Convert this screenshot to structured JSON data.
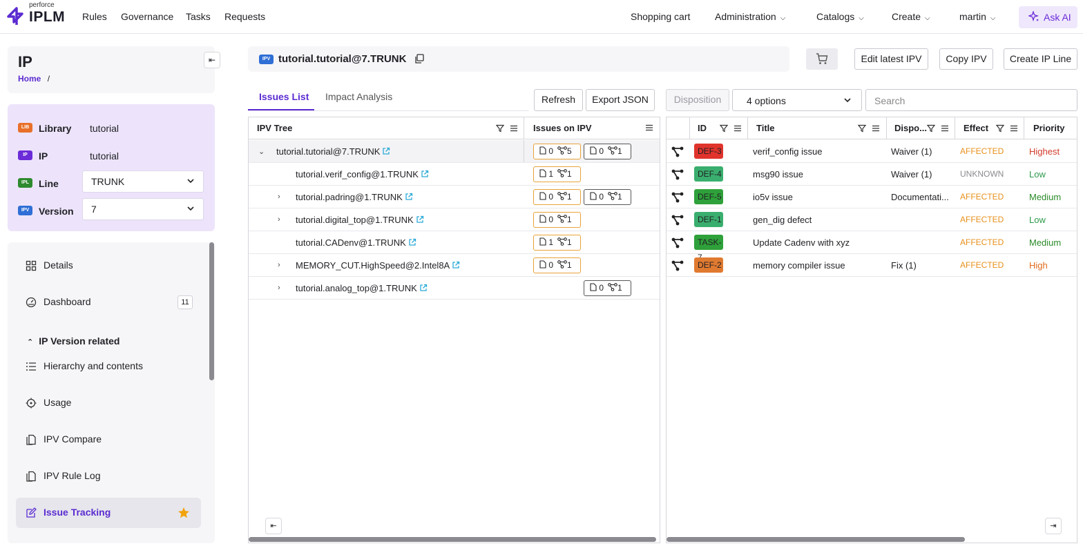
{
  "header": {
    "brand_small": "perforce",
    "brand": "IPLM",
    "nav_left": [
      "Rules",
      "Governance",
      "Tasks",
      "Requests"
    ],
    "shopping_cart": "Shopping cart",
    "administration": "Administration",
    "catalogs": "Catalogs",
    "create": "Create",
    "user": "martin",
    "ask_ai": "Ask AI"
  },
  "sidebar": {
    "title": "IP",
    "breadcrumb_home": "Home",
    "breadcrumb_sep": "/",
    "library_badge": "LIB",
    "library_label": "Library",
    "library_value": "tutorial",
    "ip_badge": "IP",
    "ip_label": "IP",
    "ip_value": "tutorial",
    "line_badge": "IPL",
    "line_label": "Line",
    "line_value": "TRUNK",
    "version_badge": "IPV",
    "version_label": "Version",
    "version_value": "7",
    "nav": {
      "details": "Details",
      "dashboard": "Dashboard",
      "dashboard_count": "11",
      "group": "IP Version related",
      "hierarchy": "Hierarchy and contents",
      "usage": "Usage",
      "ipv_compare": "IPV Compare",
      "rule_log": "IPV Rule Log",
      "issue_tracking": "Issue Tracking"
    }
  },
  "main": {
    "ipv_badge": "IPV",
    "ipv_title": "tutorial.tutorial@7.TRUNK",
    "edit_latest": "Edit latest IPV",
    "copy_ipv": "Copy IPV",
    "create_line": "Create IP Line",
    "tab_issues": "Issues List",
    "tab_impact": "Impact Analysis",
    "refresh": "Refresh",
    "export": "Export JSON",
    "disposition": "Disposition",
    "options": "4 options",
    "search_placeholder": "Search"
  },
  "tree": {
    "col_tree": "IPV Tree",
    "col_issues": "Issues on IPV",
    "rows": [
      {
        "name": "tutorial.tutorial@7.TRUNK",
        "a_doc": "0",
        "a_rel": "5",
        "b_doc": "0",
        "b_rel": "1"
      },
      {
        "name": "tutorial.verif_config@1.TRUNK",
        "a_doc": "1",
        "a_rel": "1"
      },
      {
        "name": "tutorial.padring@1.TRUNK",
        "a_doc": "0",
        "a_rel": "1",
        "b_doc": "0",
        "b_rel": "1"
      },
      {
        "name": "tutorial.digital_top@1.TRUNK",
        "a_doc": "0",
        "a_rel": "1"
      },
      {
        "name": "tutorial.CADenv@1.TRUNK",
        "a_doc": "1",
        "a_rel": "1"
      },
      {
        "name": "MEMORY_CUT.HighSpeed@2.Intel8A",
        "a_doc": "0",
        "a_rel": "1"
      },
      {
        "name": "tutorial.analog_top@1.TRUNK",
        "b_doc": "0",
        "b_rel": "1"
      }
    ]
  },
  "issues": {
    "col_id": "ID",
    "col_title": "Title",
    "col_dispo": "Dispo...",
    "col_effect": "Effect",
    "col_priority": "Priority",
    "rows": [
      {
        "id": "DEF-3",
        "title": "verif_config issue",
        "dispo": "Waiver (1)",
        "effect": "AFFECTED",
        "priority": "Highest",
        "id_color": "#e0342c",
        "prio_color": "#d23a2a",
        "effect_color": "#e8901c"
      },
      {
        "id": "DEF-4",
        "title": "msg90 issue",
        "dispo": "Waiver (1)",
        "effect": "UNKNOWN",
        "priority": "Low",
        "id_color": "#3aae6e",
        "prio_color": "#2c9a4a",
        "effect_color": "#8a8a90"
      },
      {
        "id": "DEF-5",
        "title": "io5v issue",
        "dispo": "Documentati...",
        "effect": "AFFECTED",
        "priority": "Medium",
        "id_color": "#2fa13a",
        "prio_color": "#2a8a28",
        "effect_color": "#e8901c"
      },
      {
        "id": "DEF-1",
        "title": "gen_dig defect",
        "dispo": "",
        "effect": "AFFECTED",
        "priority": "Low",
        "id_color": "#3aae6e",
        "prio_color": "#2c9a4a",
        "effect_color": "#e8901c"
      },
      {
        "id": "TASK-7",
        "title": "Update Cadenv with xyz",
        "dispo": "",
        "effect": "AFFECTED",
        "priority": "Medium",
        "id_color": "#2fa13a",
        "prio_color": "#2a8a28",
        "effect_color": "#e8901c"
      },
      {
        "id": "DEF-2",
        "title": "memory compiler issue",
        "dispo": "Fix (1)",
        "effect": "AFFECTED",
        "priority": "High",
        "id_color": "#e07a30",
        "prio_color": "#e06a1c",
        "effect_color": "#e8901c"
      }
    ]
  }
}
